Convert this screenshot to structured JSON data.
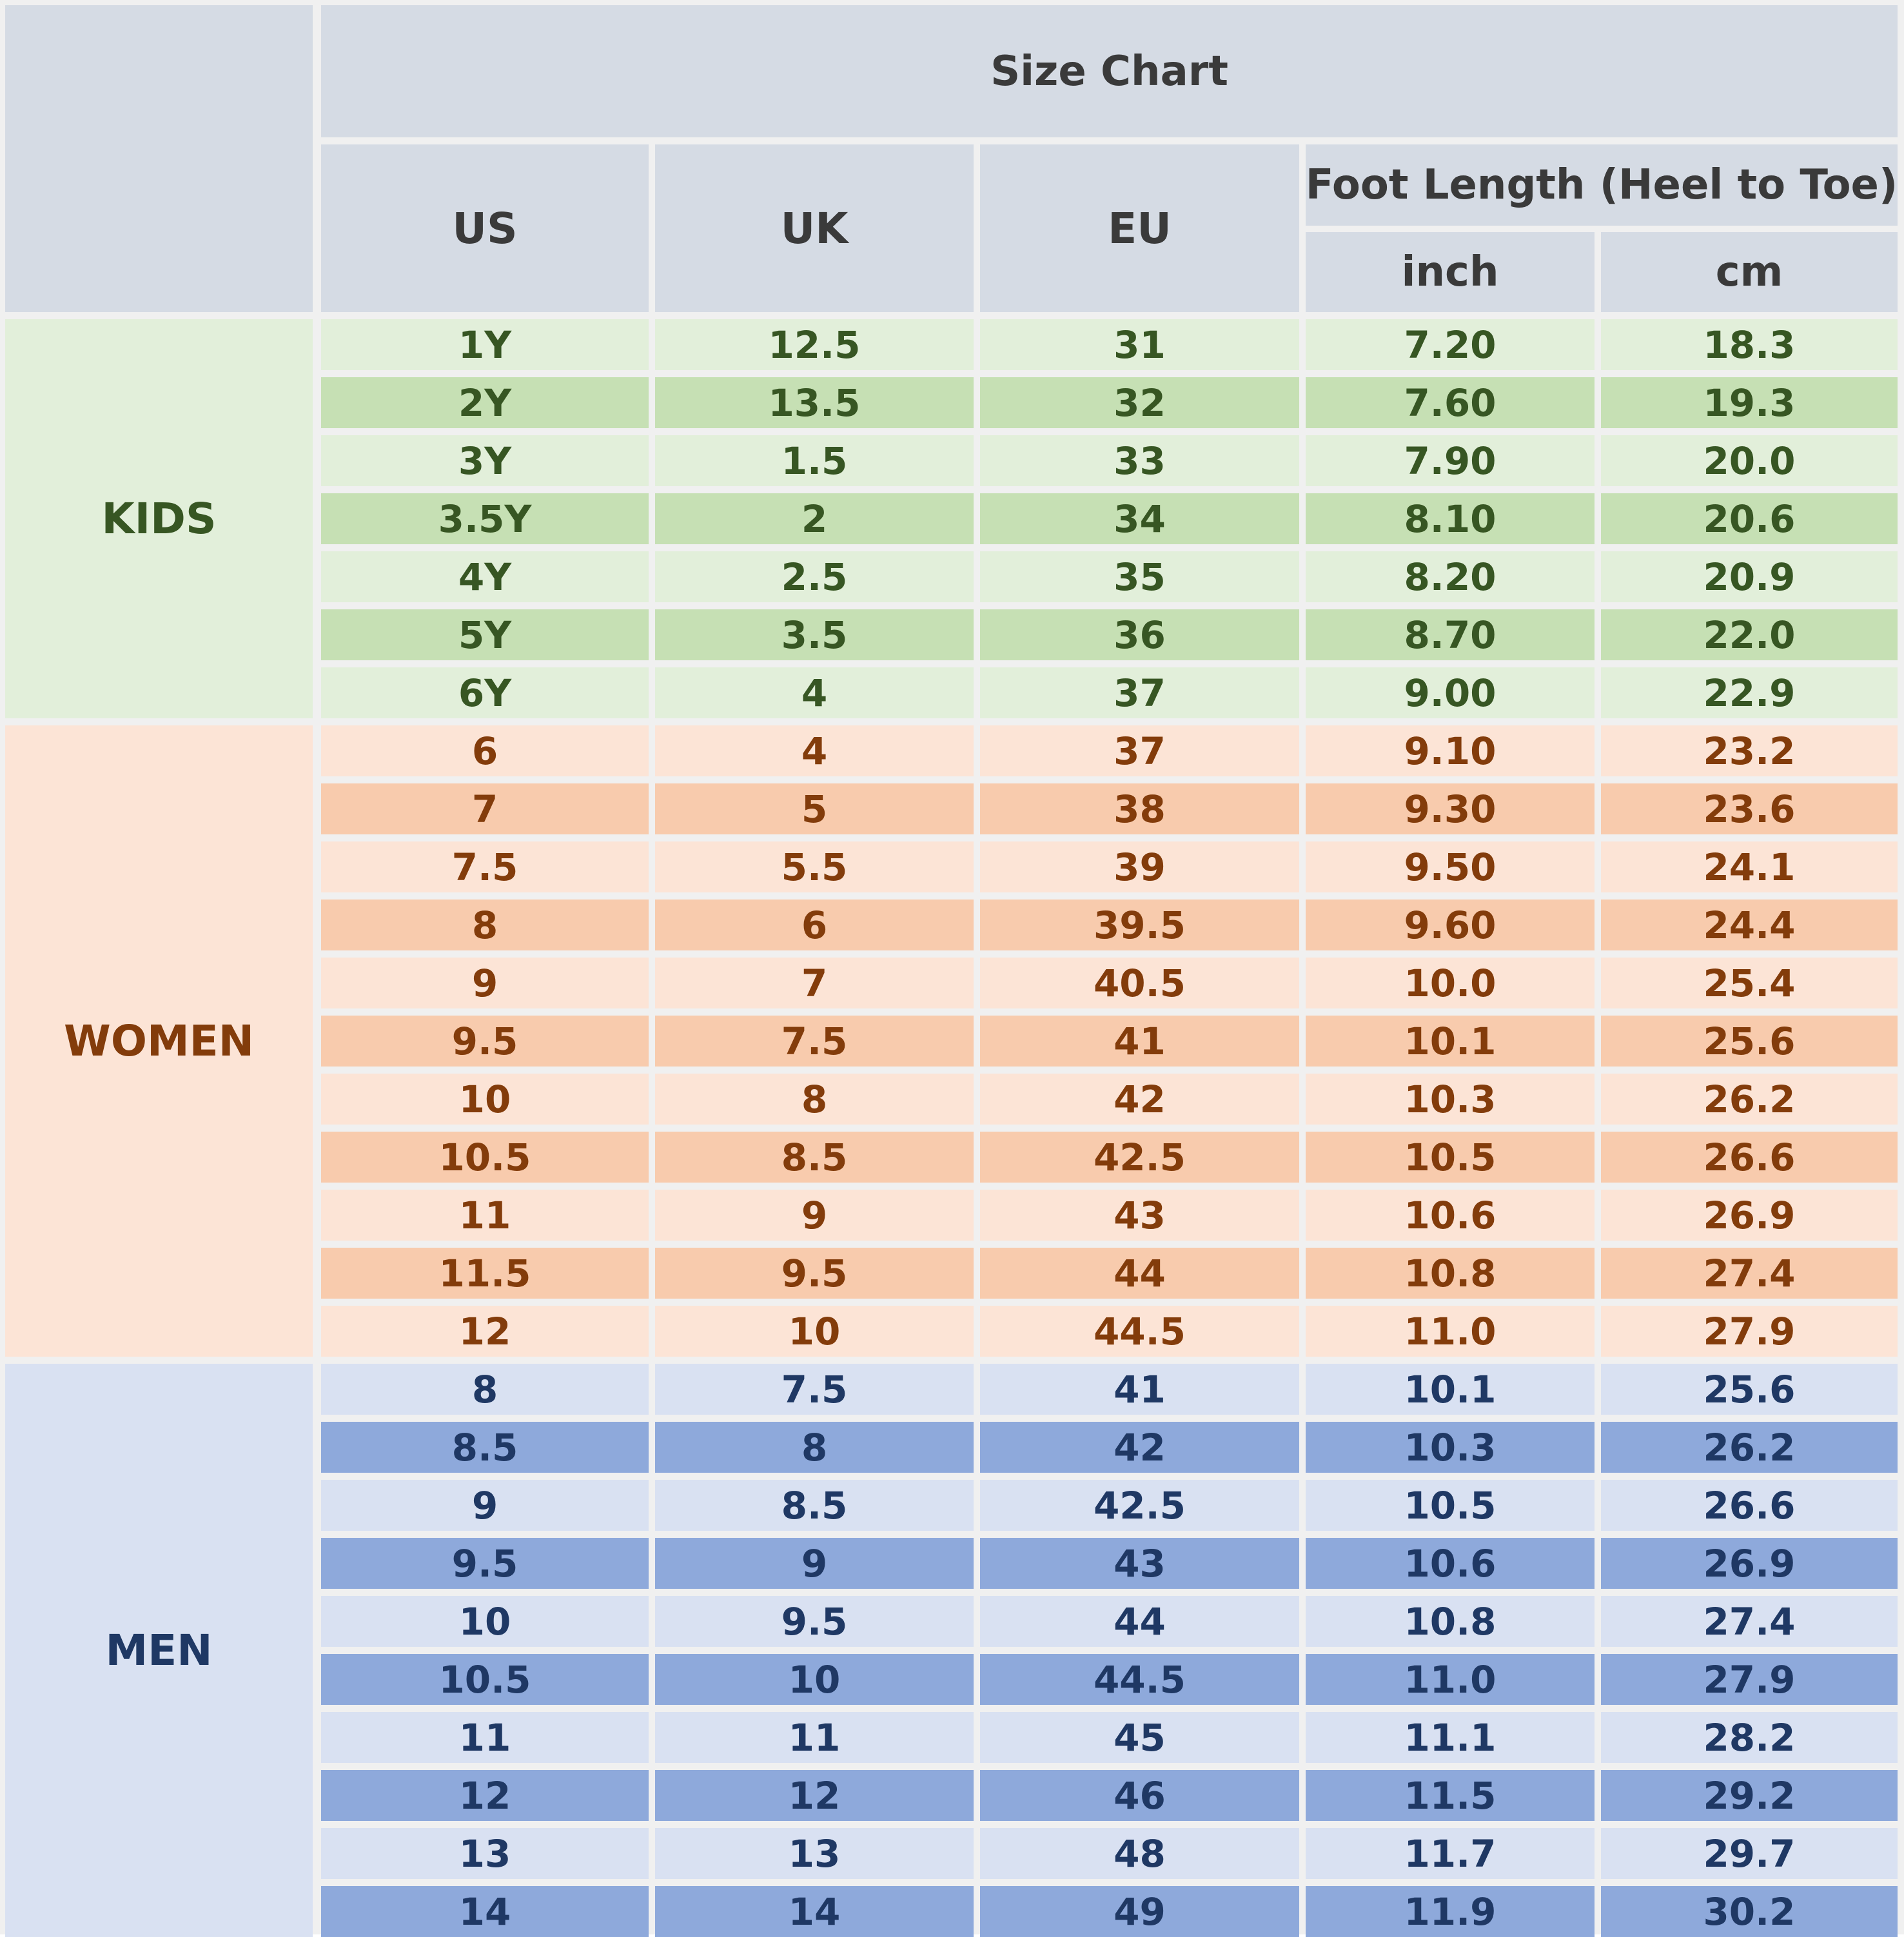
{
  "header": {
    "title": "Size Chart",
    "columns": [
      "US",
      "UK",
      "EU"
    ],
    "foot_length_label": "Foot Length (Heel to Toe)",
    "units": [
      "inch",
      "cm"
    ]
  },
  "groups": [
    {
      "label": "KIDS",
      "rows": [
        [
          "1Y",
          "12.5",
          "31",
          "7.20",
          "18.3"
        ],
        [
          "2Y",
          "13.5",
          "32",
          "7.60",
          "19.3"
        ],
        [
          "3Y",
          "1.5",
          "33",
          "7.90",
          "20.0"
        ],
        [
          "3.5Y",
          "2",
          "34",
          "8.10",
          "20.6"
        ],
        [
          "4Y",
          "2.5",
          "35",
          "8.20",
          "20.9"
        ],
        [
          "5Y",
          "3.5",
          "36",
          "8.70",
          "22.0"
        ],
        [
          "6Y",
          "4",
          "37",
          "9.00",
          "22.9"
        ]
      ]
    },
    {
      "label": "WOMEN",
      "rows": [
        [
          "6",
          "4",
          "37",
          "9.10",
          "23.2"
        ],
        [
          "7",
          "5",
          "38",
          "9.30",
          "23.6"
        ],
        [
          "7.5",
          "5.5",
          "39",
          "9.50",
          "24.1"
        ],
        [
          "8",
          "6",
          "39.5",
          "9.60",
          "24.4"
        ],
        [
          "9",
          "7",
          "40.5",
          "10.0",
          "25.4"
        ],
        [
          "9.5",
          "7.5",
          "41",
          "10.1",
          "25.6"
        ],
        [
          "10",
          "8",
          "42",
          "10.3",
          "26.2"
        ],
        [
          "10.5",
          "8.5",
          "42.5",
          "10.5",
          "26.6"
        ],
        [
          "11",
          "9",
          "43",
          "10.6",
          "26.9"
        ],
        [
          "11.5",
          "9.5",
          "44",
          "10.8",
          "27.4"
        ],
        [
          "12",
          "10",
          "44.5",
          "11.0",
          "27.9"
        ]
      ]
    },
    {
      "label": "MEN",
      "rows": [
        [
          "8",
          "7.5",
          "41",
          "10.1",
          "25.6"
        ],
        [
          "8.5",
          "8",
          "42",
          "10.3",
          "26.2"
        ],
        [
          "9",
          "8.5",
          "42.5",
          "10.5",
          "26.6"
        ],
        [
          "9.5",
          "9",
          "43",
          "10.6",
          "26.9"
        ],
        [
          "10",
          "9.5",
          "44",
          "10.8",
          "27.4"
        ],
        [
          "10.5",
          "10",
          "44.5",
          "11.0",
          "27.9"
        ],
        [
          "11",
          "11",
          "45",
          "11.1",
          "28.2"
        ],
        [
          "12",
          "12",
          "46",
          "11.5",
          "29.2"
        ],
        [
          "13",
          "13",
          "48",
          "11.7",
          "29.7"
        ],
        [
          "14",
          "14",
          "49",
          "11.9",
          "30.2"
        ]
      ]
    }
  ]
}
